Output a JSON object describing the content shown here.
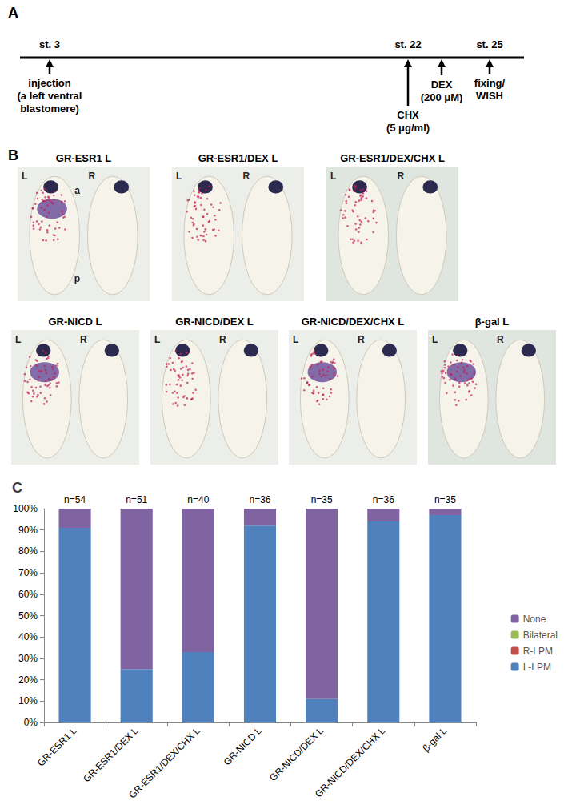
{
  "panel_labels": [
    "A",
    "B",
    "C"
  ],
  "timeline": {
    "marks": [
      {
        "stage": "st. 3",
        "text": [
          "injection",
          "(a left ventral",
          "blastomere)"
        ]
      },
      {
        "stage": "st. 22",
        "text": [
          "CHX",
          "(5 μg/ml)"
        ]
      },
      {
        "text": [
          "DEX",
          "(200 μM)"
        ]
      },
      {
        "stage": "st. 25",
        "text": [
          "fixing/",
          "WISH"
        ]
      }
    ]
  },
  "images": {
    "rows": [
      [
        {
          "title": "GR-ESR1 L",
          "sides": [
            "L",
            "R"
          ],
          "axis": [
            "a",
            "p"
          ]
        },
        {
          "title": "GR-ESR1/DEX L",
          "sides": [
            "L",
            "R"
          ]
        },
        {
          "title": "GR-ESR1/DEX/CHX L",
          "sides": [
            "L",
            "R"
          ]
        }
      ],
      [
        {
          "title": "GR-NICD L",
          "sides": [
            "L",
            "R"
          ]
        },
        {
          "title": "GR-NICD/DEX L",
          "sides": [
            "L",
            "R"
          ]
        },
        {
          "title": "GR-NICD/DEX/CHX L",
          "sides": [
            "L",
            "R"
          ]
        },
        {
          "title": "β-gal  L",
          "sides": [
            "L",
            "R"
          ]
        }
      ]
    ]
  },
  "chart_data": {
    "type": "bar",
    "stacked": true,
    "grid": false,
    "legend": "right",
    "categories": [
      "GR-ESR1 L",
      "GR-ESR1/DEX L",
      "GR-ESR1/DEX/CHX L",
      "GR-NICD L",
      "GR-NICD/DEX L",
      "GR-NICD/DEX/CHX L",
      "β-gal L"
    ],
    "annotations": [
      "n=54",
      "n=51",
      "n=40",
      "n=36",
      "n=35",
      "n=36",
      "n=35"
    ],
    "series": [
      {
        "name": "L-LPM",
        "color": "#4f81bd",
        "values": [
          91,
          25,
          33,
          92,
          11,
          94,
          97
        ]
      },
      {
        "name": "R-LPM",
        "color": "#c0504d",
        "values": [
          0,
          0,
          0,
          0,
          0,
          0,
          0
        ]
      },
      {
        "name": "Bilateral",
        "color": "#9bbb59",
        "values": [
          0,
          0,
          0,
          0,
          0,
          0,
          0
        ]
      },
      {
        "name": "None",
        "color": "#8064a2",
        "values": [
          9,
          75,
          67,
          8,
          89,
          6,
          3
        ]
      }
    ],
    "ylim": [
      0,
      100
    ],
    "yticks": [
      {
        "value": 0,
        "label": "0%"
      },
      {
        "value": 10,
        "label": "10%"
      },
      {
        "value": 20,
        "label": "20%"
      },
      {
        "value": 30,
        "label": "30%"
      },
      {
        "value": 40,
        "label": "40%"
      },
      {
        "value": 50,
        "label": "50%"
      },
      {
        "value": 60,
        "label": "60%"
      },
      {
        "value": 70,
        "label": "70%"
      },
      {
        "value": 80,
        "label": "80%"
      },
      {
        "value": 90,
        "label": "90%"
      },
      {
        "value": 100,
        "label": "100%"
      }
    ]
  }
}
